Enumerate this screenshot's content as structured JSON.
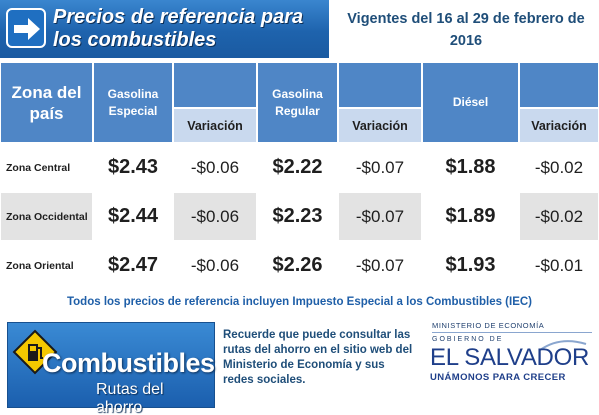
{
  "header": {
    "title": "Precios de referencia para\nlos combustibles",
    "validity": "Vigentes del 16 al 29 de febrero de 2016"
  },
  "table": {
    "zone_header": "Zona del país",
    "fuels": [
      {
        "name": "Gasolina Especial",
        "variation_label": "Variación"
      },
      {
        "name": "Gasolina Regular",
        "variation_label": "Variación"
      },
      {
        "name": "Diésel",
        "variation_label": "Variación"
      }
    ],
    "rows": [
      {
        "zone": "Zona Central",
        "prices": [
          "$2.43",
          "$2.22",
          "$1.88"
        ],
        "variations": [
          "-$0.06",
          "-$0.07",
          "-$0.02"
        ]
      },
      {
        "zone": "Zona Occidental",
        "prices": [
          "$2.44",
          "$2.23",
          "$1.89"
        ],
        "variations": [
          "-$0.06",
          "-$0.07",
          "-$0.02"
        ]
      },
      {
        "zone": "Zona Oriental",
        "prices": [
          "$2.47",
          "$2.26",
          "$1.93"
        ],
        "variations": [
          "-$0.06",
          "-$0.07",
          "-$0.01"
        ]
      }
    ]
  },
  "note": "Todos los precios de referencia incluyen Impuesto Especial a los Combustibles (IEC)",
  "footer": {
    "logo_word": "Combustibles",
    "logo_sub": "Rutas del ahorro",
    "reminder": "Recuerde que puede consultar las rutas del ahorro en el sitio web del Ministerio de Economía y sus redes sociales.",
    "ministry": "MINISTERIO DE ECONOMÍA",
    "government": "GOBIERNO DE",
    "country": "EL SALVADOR",
    "slogan": "UNÁMONOS PARA CRECER"
  },
  "colors": {
    "header_blue": "#1e63ad",
    "table_header_blue": "#4f86c6",
    "variation_header": "#c9d9ee",
    "alt_row_gray": "#e3e3e3",
    "text_navy": "#1f4e79"
  },
  "icons": [
    "arrow-right-icon",
    "fuel-pump-sign-icon",
    "swoosh-icon"
  ]
}
